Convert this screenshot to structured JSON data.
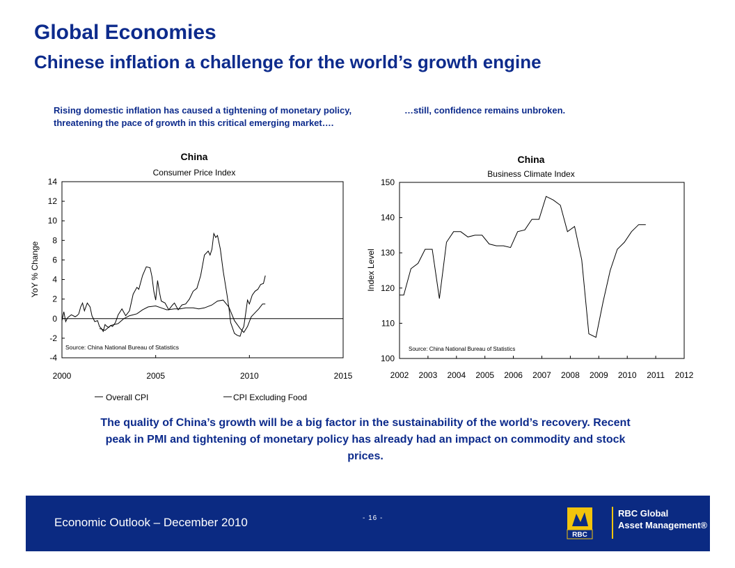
{
  "header": {
    "title": "Global Economies",
    "subtitle": "Chinese inflation a challenge for the world’s growth engine"
  },
  "captions": {
    "left": "Rising domestic inflation has caused a tightening of monetary policy, threatening the pace of growth in this critical emerging market….",
    "right": "…still, confidence remains unbroken."
  },
  "summary": "The quality of China’s growth will be a big factor in the sustainability of the world’s recovery.  Recent peak in PMI  and tightening of monetary policy has already had an impact on commodity and stock prices.",
  "footer": {
    "left_text": "Economic Outlook – December 2010",
    "page_number": "- 16 -",
    "brand_line1": "RBC Global",
    "brand_line2": "Asset Management®",
    "logo_text": "RBC",
    "colors": {
      "background": "#0b2a82",
      "accent": "#f2c40c"
    }
  },
  "chart_data": [
    {
      "type": "line",
      "title": "China",
      "subtitle": "Consumer Price Index",
      "ylabel": "YoY % Change",
      "xlabel": "",
      "xlim": [
        2000,
        2015
      ],
      "ylim": [
        -4,
        14
      ],
      "xticks": [
        "2000",
        "2005",
        "2010",
        "2015"
      ],
      "yticks": [
        "-4",
        "-2",
        "0",
        "2",
        "4",
        "6",
        "8",
        "10",
        "12",
        "14"
      ],
      "source": "Source: China National Bureau of Statistics",
      "legend": "bottom",
      "series": [
        {
          "name": "Overall CPI",
          "x": [
            2000.0,
            2000.1,
            2000.2,
            2000.3,
            2000.5,
            2000.7,
            2000.8,
            2000.9,
            2001.0,
            2001.1,
            2001.2,
            2001.35,
            2001.5,
            2001.6,
            2001.75,
            2001.9,
            2002.0,
            2002.1,
            2002.2,
            2002.3,
            2002.4,
            2002.5,
            2002.6,
            2002.7,
            2002.85,
            2003.0,
            2003.2,
            2003.4,
            2003.6,
            2003.8,
            2004.0,
            2004.1,
            2004.3,
            2004.5,
            2004.7,
            2004.8,
            2004.9,
            2005.0,
            2005.1,
            2005.2,
            2005.3,
            2005.5,
            2005.7,
            2005.9,
            2006.0,
            2006.2,
            2006.4,
            2006.6,
            2006.8,
            2007.0,
            2007.2,
            2007.4,
            2007.6,
            2007.8,
            2007.9,
            2008.0,
            2008.1,
            2008.2,
            2008.3,
            2008.45,
            2008.6,
            2008.8,
            2008.9,
            2009.0,
            2009.2,
            2009.35,
            2009.5,
            2009.6,
            2009.7,
            2009.8,
            2009.9,
            2010.0,
            2010.15,
            2010.3,
            2010.45,
            2010.6,
            2010.75,
            2010.85
          ],
          "y": [
            -0.2,
            0.7,
            -0.3,
            0.1,
            0.4,
            0.2,
            0.3,
            0.5,
            1.2,
            1.6,
            0.8,
            1.6,
            1.2,
            0.3,
            -0.3,
            -0.2,
            -0.8,
            -1.0,
            -1.3,
            -0.6,
            -0.8,
            -0.9,
            -0.7,
            -0.8,
            -0.4,
            0.4,
            1.0,
            0.3,
            0.8,
            2.5,
            3.2,
            3.0,
            4.4,
            5.3,
            5.2,
            4.3,
            2.8,
            1.9,
            3.9,
            2.7,
            1.8,
            1.6,
            0.9,
            1.4,
            1.6,
            0.9,
            1.4,
            1.5,
            2.0,
            2.8,
            3.1,
            4.4,
            6.5,
            6.9,
            6.5,
            7.1,
            8.7,
            8.3,
            8.5,
            7.1,
            4.9,
            2.5,
            1.2,
            -0.4,
            -1.5,
            -1.7,
            -1.8,
            -1.2,
            -0.8,
            0.5,
            1.9,
            1.5,
            2.4,
            2.8,
            3.0,
            3.5,
            3.6,
            4.4
          ]
        },
        {
          "name": "CPI Excluding Food",
          "x": [
            2002.0,
            2002.3,
            2002.6,
            2003.0,
            2003.3,
            2003.6,
            2004.0,
            2004.3,
            2004.6,
            2005.0,
            2005.3,
            2005.6,
            2006.0,
            2006.3,
            2006.6,
            2007.0,
            2007.3,
            2007.6,
            2008.0,
            2008.3,
            2008.6,
            2008.9,
            2009.2,
            2009.5,
            2009.7,
            2009.9,
            2010.1,
            2010.3,
            2010.5,
            2010.7,
            2010.85
          ],
          "y": [
            -1.0,
            -1.2,
            -0.7,
            -0.5,
            0.0,
            0.3,
            0.5,
            0.9,
            1.2,
            1.3,
            1.1,
            0.9,
            1.0,
            1.0,
            1.1,
            1.1,
            1.0,
            1.1,
            1.4,
            1.8,
            1.9,
            1.2,
            -0.2,
            -1.0,
            -1.4,
            -0.8,
            0.2,
            0.6,
            1.0,
            1.5,
            1.5
          ]
        }
      ]
    },
    {
      "type": "line",
      "title": "China",
      "subtitle": "Business Climate Index",
      "ylabel": "Index Level",
      "xlabel": "",
      "xlim": [
        2002,
        2012
      ],
      "ylim": [
        100,
        150
      ],
      "xticks": [
        "2002",
        "2003",
        "2004",
        "2005",
        "2006",
        "2007",
        "2008",
        "2009",
        "2010",
        "2011",
        "2012"
      ],
      "yticks": [
        "100",
        "110",
        "120",
        "130",
        "140",
        "150"
      ],
      "source": "Source: China National Bureau of Statistics",
      "legend": "none",
      "series": [
        {
          "x": [
            2002.0,
            2002.15,
            2002.4,
            2002.65,
            2002.9,
            2003.15,
            2003.4,
            2003.65,
            2003.9,
            2004.15,
            2004.4,
            2004.65,
            2004.9,
            2005.15,
            2005.4,
            2005.65,
            2005.9,
            2006.15,
            2006.4,
            2006.65,
            2006.9,
            2007.15,
            2007.4,
            2007.65,
            2007.9,
            2008.15,
            2008.4,
            2008.65,
            2008.9,
            2009.15,
            2009.4,
            2009.65,
            2009.9,
            2010.15,
            2010.4,
            2010.65
          ],
          "y": [
            118,
            118,
            125.5,
            127,
            131,
            131,
            117,
            133,
            136,
            136,
            134.5,
            135,
            135,
            132.5,
            132,
            132,
            131.5,
            136,
            136.5,
            139.5,
            139.5,
            146,
            145,
            143.5,
            136,
            137.5,
            128,
            107,
            106,
            116,
            125,
            131,
            133,
            136,
            138,
            138
          ]
        }
      ]
    }
  ]
}
